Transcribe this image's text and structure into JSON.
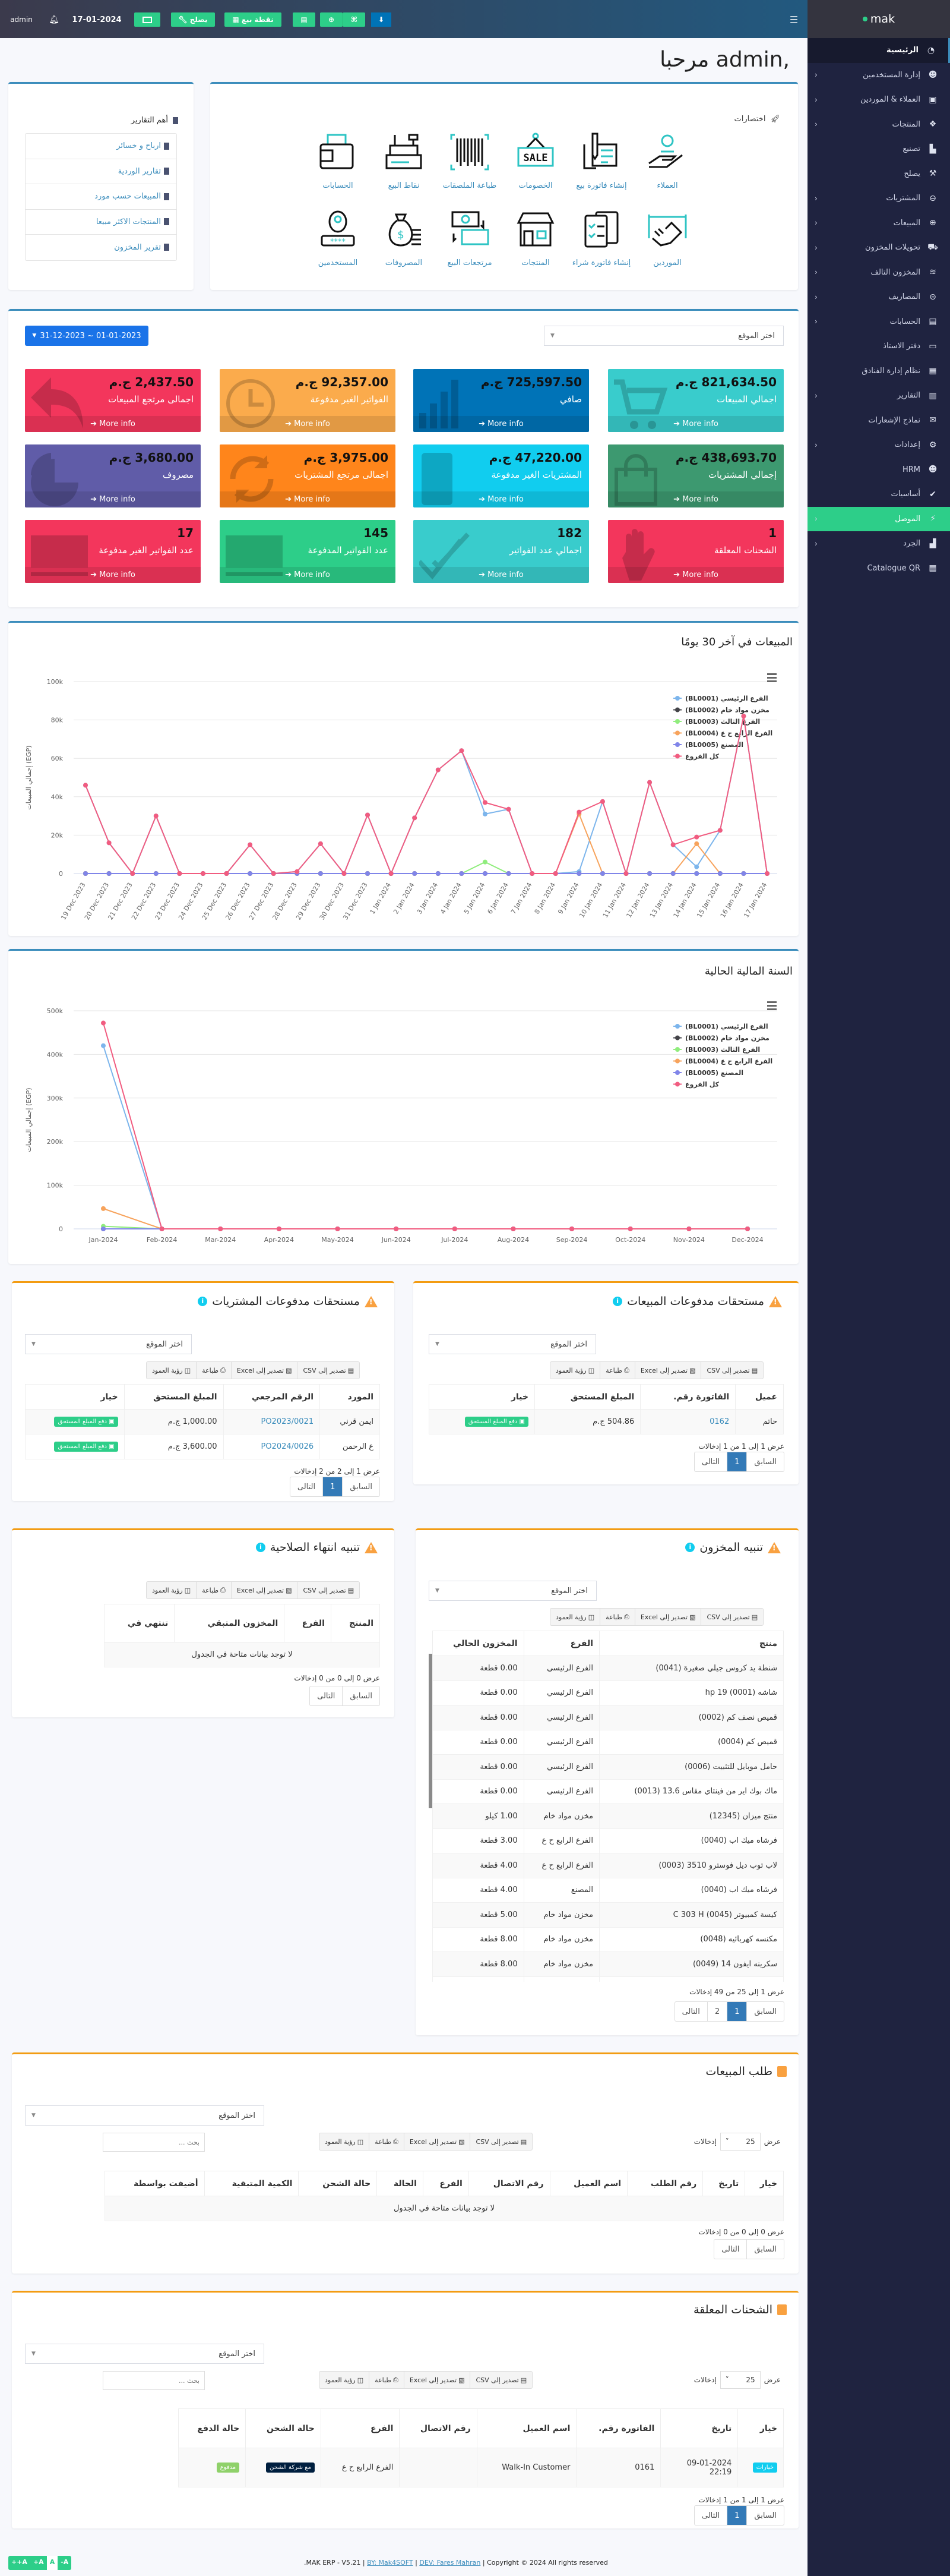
{
  "navbar": {
    "user": "admin",
    "date": "17-01-2024",
    "repair_label": "يصلح",
    "pos_label": "نقطة بيع"
  },
  "brand": {
    "name": "mak"
  },
  "sidebar": {
    "items": [
      {
        "label": "الرئيسية",
        "icon": "◔",
        "active": true,
        "chevron": false
      },
      {
        "label": "إدارة المستخدمين",
        "icon": "☻",
        "chevron": true
      },
      {
        "label": "العملاء & الموردين",
        "icon": "▣",
        "chevron": true
      },
      {
        "label": "المنتجات",
        "icon": "❖",
        "chevron": true
      },
      {
        "label": "تصنيع",
        "icon": "▙",
        "chevron": false
      },
      {
        "label": "يصلح",
        "icon": "⚒",
        "chevron": false
      },
      {
        "label": "المشتريات",
        "icon": "⊖",
        "chevron": true
      },
      {
        "label": "المبيعات",
        "icon": "⊕",
        "chevron": true
      },
      {
        "label": "تحويلات المخزون",
        "icon": "⛟",
        "chevron": true
      },
      {
        "label": "المخزون التالف",
        "icon": "≋",
        "chevron": true
      },
      {
        "label": "المصاريف",
        "icon": "⊝",
        "chevron": true
      },
      {
        "label": "الحسابات",
        "icon": "▤",
        "chevron": true
      },
      {
        "label": "دفتر الاستاذ",
        "icon": "▭",
        "chevron": false
      },
      {
        "label": "نظام إدارة الفنادق",
        "icon": "▦",
        "chevron": false
      },
      {
        "label": "التقارير",
        "icon": "▥",
        "chevron": true
      },
      {
        "label": "نماذج الإشعارات",
        "icon": "✉",
        "chevron": false
      },
      {
        "label": "إعدادات",
        "icon": "⚙",
        "chevron": true
      },
      {
        "label": "HRM",
        "icon": "☻",
        "chevron": false
      },
      {
        "label": "أساسيات",
        "icon": "✔",
        "chevron": false
      },
      {
        "label": "الموصل",
        "icon": "⚡",
        "chevron": true,
        "green": true
      },
      {
        "label": "الجرد",
        "icon": "▟",
        "chevron": true
      },
      {
        "label": "Catalogue QR",
        "icon": "▦",
        "chevron": false
      }
    ]
  },
  "welcome": "مرحبا admin,",
  "reports": {
    "title": "أهم التقارير",
    "items": [
      "ارباح و خسائر",
      "تقارير الوردية",
      "المبيعات حسب مورد",
      "المنتجات الاكثر مبيعا",
      "تقرير المخزون"
    ]
  },
  "shortcuts": {
    "title": "اختصارات",
    "items": [
      {
        "label": "العملاء",
        "icon": "customers-icon"
      },
      {
        "label": "إنشاء فاتورة بيع",
        "icon": "sell-invoice-icon"
      },
      {
        "label": "الخصومات",
        "icon": "sale-sign-icon"
      },
      {
        "label": "طباعة الملصقات",
        "icon": "barcode-icon"
      },
      {
        "label": "نقاط البيع",
        "icon": "cash-register-icon"
      },
      {
        "label": "الحسابات",
        "icon": "wallet-icon"
      },
      {
        "label": "الموردين",
        "icon": "handshake-icon"
      },
      {
        "label": "إنشاء فاتورة شراء",
        "icon": "purchase-clipboard-icon"
      },
      {
        "label": "المنتجات",
        "icon": "store-icon"
      },
      {
        "label": "مرتجعات البيع",
        "icon": "money-return-icon"
      },
      {
        "label": "المصروفات",
        "icon": "money-bag-icon"
      },
      {
        "label": "المستخدمين",
        "icon": "user-password-icon"
      }
    ]
  },
  "stats": {
    "date_range": "31-12-2023 ~ 01-01-2023",
    "location_placeholder": "اختر الموقع",
    "more_info": "More info",
    "cards": [
      {
        "value": "821,634.50 ج.م",
        "label": "اجمالي المبيعات",
        "color": "#39cccc",
        "icon": "cart"
      },
      {
        "value": "725,597.50 ج.م",
        "label": "صافي",
        "color": "#0073b7",
        "icon": "bars"
      },
      {
        "value": "92,357.00 ج.م",
        "label": "الفواتير الغير مدفوعة",
        "color": "#fbab4c",
        "icon": "clock"
      },
      {
        "value": "2,437.50 ج.م",
        "label": "اجمالى مرتجع المبيعات",
        "color": "#f3365c",
        "icon": "undo"
      },
      {
        "value": "438,693.70 ج.م",
        "label": "إجمالي المشتريات",
        "color": "#3d9970",
        "icon": "bag"
      },
      {
        "value": "47,220.00 ج.م",
        "label": "المشتريات الغير مدفوعة",
        "color": "#11cdef",
        "icon": "calc"
      },
      {
        "value": "3,975.00 ج.م",
        "label": "اجمالى مرتجع المشتريات",
        "color": "#ff851b",
        "icon": "refresh"
      },
      {
        "value": "3,680.00 ج.م",
        "label": "مصروف",
        "color": "#605ca8",
        "icon": "pie"
      },
      {
        "value": "1",
        "label": "الشحنات المعلقة",
        "color": "#f3365c",
        "icon": "hand"
      },
      {
        "value": "182",
        "label": "اجمالي عدد الفواتير",
        "color": "#39cccc",
        "icon": "check"
      },
      {
        "value": "145",
        "label": "عدد الفواتير المدفوعة",
        "color": "#2dce89",
        "icon": "money"
      },
      {
        "value": "17",
        "label": "عدد الفواتير الغير مدفوعة",
        "color": "#f3365c",
        "icon": "money"
      }
    ]
  },
  "chart_data": [
    {
      "type": "line",
      "title": "المبيعات في آخر 30 يومًا",
      "ylabel": "إجمالي المبيعات (EGP)",
      "xlabel": "",
      "ylim": [
        0,
        100000
      ],
      "yticks": [
        0,
        20000,
        40000,
        60000,
        80000,
        100000
      ],
      "ytick_labels": [
        "0",
        "20k",
        "40k",
        "60k",
        "80k",
        "100k"
      ],
      "grid": true,
      "legend": "top-right",
      "x": [
        "19 Dec 2023",
        "20 Dec 2023",
        "21 Dec 2023",
        "22 Dec 2023",
        "23 Dec 2023",
        "24 Dec 2023",
        "25 Dec 2023",
        "26 Dec 2023",
        "27 Dec 2023",
        "28 Dec 2023",
        "29 Dec 2023",
        "30 Dec 2023",
        "31 Dec 2023",
        "1 Jan 2024",
        "2 Jan 2024",
        "3 Jan 2024",
        "4 Jan 2024",
        "5 Jan 2024",
        "6 Jan 2024",
        "7 Jan 2024",
        "8 Jan 2024",
        "9 Jan 2024",
        "10 Jan 2024",
        "11 Jan 2024",
        "12 Jan 2024",
        "13 Jan 2024",
        "14 Jan 2024",
        "15 Jan 2024",
        "16 Jan 2024",
        "17 Jan 2024"
      ],
      "series": [
        {
          "name": "(BL0001) الفرع الرئيسي",
          "color": "#7cb5ec",
          "values": [
            46000,
            16000,
            0,
            30000,
            0,
            0,
            0,
            15000,
            0,
            1000,
            15500,
            0,
            30500,
            0,
            29000,
            54000,
            64000,
            31000,
            33500,
            0,
            0,
            1000,
            37500,
            0,
            47500,
            15000,
            3500,
            22500,
            82000,
            0
          ]
        },
        {
          "name": "(BL0002) مخزن مواد خام",
          "color": "#434348",
          "values": [
            0,
            0,
            0,
            0,
            0,
            0,
            0,
            0,
            0,
            0,
            0,
            0,
            0,
            0,
            0,
            0,
            0,
            0,
            0,
            0,
            0,
            0,
            0,
            0,
            0,
            0,
            0,
            0,
            0,
            0
          ]
        },
        {
          "name": "(BL0003) الفرع الثالث",
          "color": "#90ed7d",
          "values": [
            0,
            0,
            0,
            0,
            0,
            0,
            0,
            0,
            0,
            0,
            0,
            0,
            0,
            0,
            0,
            0,
            0,
            6000,
            0,
            0,
            0,
            0,
            0,
            0,
            0,
            0,
            0,
            0,
            0,
            0
          ]
        },
        {
          "name": "(BL0004) الفرع الرابع ح ع",
          "color": "#f7a35c",
          "values": [
            0,
            0,
            0,
            0,
            0,
            0,
            0,
            0,
            0,
            0,
            0,
            0,
            0,
            0,
            0,
            0,
            0,
            0,
            0,
            0,
            0,
            31000,
            0,
            0,
            0,
            0,
            15500,
            0,
            0,
            0
          ]
        },
        {
          "name": "(BL0005) المصنع",
          "color": "#8085e9",
          "values": [
            0,
            0,
            0,
            0,
            0,
            0,
            0,
            0,
            0,
            0,
            0,
            0,
            0,
            0,
            0,
            0,
            0,
            0,
            0,
            0,
            0,
            0,
            0,
            0,
            0,
            0,
            0,
            0,
            0,
            0
          ]
        },
        {
          "name": "كل الفروع",
          "color": "#f15c80",
          "values": [
            46000,
            16000,
            0,
            30000,
            0,
            0,
            0,
            15000,
            0,
            1000,
            15500,
            0,
            30500,
            0,
            29000,
            54000,
            64000,
            37000,
            33500,
            0,
            0,
            32000,
            37500,
            0,
            47500,
            15000,
            19000,
            22500,
            82000,
            0
          ]
        }
      ]
    },
    {
      "type": "line",
      "title": "السنة المالية الحالية",
      "ylabel": "إجمالي المبيعات (EGP)",
      "xlabel": "",
      "ylim": [
        0,
        500000
      ],
      "yticks": [
        0,
        100000,
        200000,
        300000,
        400000,
        500000
      ],
      "ytick_labels": [
        "0",
        "100k",
        "200k",
        "300k",
        "400k",
        "500k"
      ],
      "grid": true,
      "legend": "top-right",
      "x": [
        "Jan-2024",
        "Feb-2024",
        "Mar-2024",
        "Apr-2024",
        "May-2024",
        "Jun-2024",
        "Jul-2024",
        "Aug-2024",
        "Sep-2024",
        "Oct-2024",
        "Nov-2024",
        "Dec-2024"
      ],
      "series": [
        {
          "name": "(BL0001) الفرع الرئيسي",
          "color": "#7cb5ec",
          "values": [
            420000,
            0,
            0,
            0,
            0,
            0,
            0,
            0,
            0,
            0,
            0,
            0
          ]
        },
        {
          "name": "(BL0002) مخزن مواد خام",
          "color": "#434348",
          "values": [
            0,
            0,
            0,
            0,
            0,
            0,
            0,
            0,
            0,
            0,
            0,
            0
          ]
        },
        {
          "name": "(BL0003) الفرع الثالث",
          "color": "#90ed7d",
          "values": [
            6000,
            0,
            0,
            0,
            0,
            0,
            0,
            0,
            0,
            0,
            0,
            0
          ]
        },
        {
          "name": "(BL0004) الفرع الرابع ح ع",
          "color": "#f7a35c",
          "values": [
            46500,
            0,
            0,
            0,
            0,
            0,
            0,
            0,
            0,
            0,
            0,
            0
          ]
        },
        {
          "name": "(BL0005) المصنع",
          "color": "#8085e9",
          "values": [
            0,
            0,
            0,
            0,
            0,
            0,
            0,
            0,
            0,
            0,
            0,
            0
          ]
        },
        {
          "name": "كل الفروع",
          "color": "#f15c80",
          "values": [
            472000,
            0,
            0,
            0,
            0,
            0,
            0,
            0,
            0,
            0,
            0,
            0
          ]
        }
      ]
    }
  ],
  "common": {
    "location_placeholder": "اختر الموقع",
    "csv": "تصدير إلى CSV",
    "excel": "تصدير إلى Excel",
    "print": "طباعة",
    "colvis": "رؤية العمود",
    "prev": "السابق",
    "next": "التالى",
    "page1": "1",
    "page2": "2",
    "pay_due": "دفع المبلغ المستحق",
    "show": "عرض",
    "entries": "إدخالات",
    "page_len": "25",
    "search_placeholder": "بحث ...",
    "empty": "لا توجد بيانات متاحة في الجدول"
  },
  "sales_due": {
    "title": "مستحقات مدفوعات المبيعات",
    "columns": [
      "عميل",
      "الفاتورة رقم.",
      "المبلغ المستحق",
      "خيار"
    ],
    "rows": [
      [
        "حاتم",
        "0162",
        "504.86 ج.م"
      ]
    ],
    "info": "عرض 1 إلى 1 من 1 إدخالات"
  },
  "purchase_due": {
    "title": "مستحقات مدفوعات المشتريات",
    "columns": [
      "المورد",
      "الرقم المرجعي",
      "المبلغ المستحق",
      "خيار"
    ],
    "rows": [
      [
        "ايمن قرني",
        "PO2023/0021",
        "1,000.00 ج.م"
      ],
      [
        "ع الرحمن",
        "PO2024/0026",
        "3,600.00 ج.م"
      ]
    ],
    "info": "عرض 1 إلى 2 من 2 إدخالات"
  },
  "stock_alert": {
    "title": "تنبيه المخزون",
    "columns": [
      "منتج",
      "الفرع",
      "المخزون الحالي"
    ],
    "rows": [
      [
        "شنطة يد كروس جيلي صغيرة (0041)",
        "الفرع الرئيسي",
        "0.00 قطعة"
      ],
      [
        "شاشه hp 19 (0001)",
        "الفرع الرئيسي",
        "0.00 قطعة"
      ],
      [
        "قميص نصف كم (0002)",
        "الفرع الرئيسي",
        "0.00 قطعة"
      ],
      [
        "قميص كم (0004)",
        "الفرع الرئيسي",
        "0.00 قطعة"
      ],
      [
        "حامل موبايل للتثبيت (0006)",
        "الفرع الرئيسي",
        "0.00 قطعة"
      ],
      [
        "ماك بوك اير من فينتاي مقاس 13.6 (0013)",
        "الفرع الرئيسي",
        "0.00 قطعة"
      ],
      [
        "منتج ميزان (12345)",
        "مخزن مواد خام",
        "1.00 كيلو"
      ],
      [
        "فرشاه ميك اب (0040)",
        "الفرع الرابع ح ع",
        "3.00 قطعة"
      ],
      [
        "لاب توب ديل فوسترو 3510 (0003)",
        "الفرع الرابع ح ع",
        "4.00 قطعة"
      ],
      [
        "فرشاه ميك اب (0040)",
        "المصنع",
        "4.00 قطعة"
      ],
      [
        "كيسة كمبيوتر (0045) C 303 H",
        "مخزن مواد خام",
        "5.00 قطعة"
      ],
      [
        "مكنسه كهربائيه (0048)",
        "مخزن مواد خام",
        "8.00 قطعة"
      ],
      [
        "سكرينه ايفون 14 (0049)",
        "مخزن مواد خام",
        "8.00 قطعة"
      ]
    ],
    "info": "عرض 1 إلى 25 من 49 إدخالات"
  },
  "expiry_alert": {
    "title": "تنبيه انتهاء الصلاحية",
    "columns": [
      "المنتج",
      "الفرع",
      "المخزون المتبقي",
      "تنتهي في"
    ],
    "info": "عرض 0 إلى 0 من 0 إدخالات"
  },
  "sales_order": {
    "title": "طلب المبيعات",
    "columns": [
      "خيار",
      "تاريخ",
      "رقم الطلب",
      "اسم العميل",
      "رقم الاتصال",
      "الفرع",
      "الحالة",
      "حالة الشحن",
      "الكمية المتبقية",
      "أضيفت بواسطة"
    ],
    "info": "عرض 0 إلى 0 من 0 إدخالات"
  },
  "pending_shipments": {
    "title": "الشحنات المعلقة",
    "columns": [
      "خيار",
      "تاريخ",
      "الفاتورة رقم.",
      "اسم العميل",
      "رقم الاتصال",
      "الفرع",
      "حالة الشحن",
      "حالة الدفع"
    ],
    "rows": [
      {
        "action": "خيارات",
        "date": "09-01-2024 22:19",
        "invoice": "0161",
        "customer": "Walk-In Customer",
        "contact": "",
        "branch": "الفرع الرابع ح ع",
        "shipping_status": "مع شركة الشحن",
        "payment_status": "مدفوع"
      }
    ],
    "info": "عرض 1 إلى 1 من 1 إدخالات"
  },
  "footer": {
    "app": ".MAK ERP - V5.21",
    "by": "BY: Mak4SOFT",
    "dev": "DEV: Fares Mahran",
    "copyright": "Copyright © 2024 All rights reserved",
    "font_buttons": [
      "++A",
      "+A",
      "A",
      "-A"
    ]
  }
}
